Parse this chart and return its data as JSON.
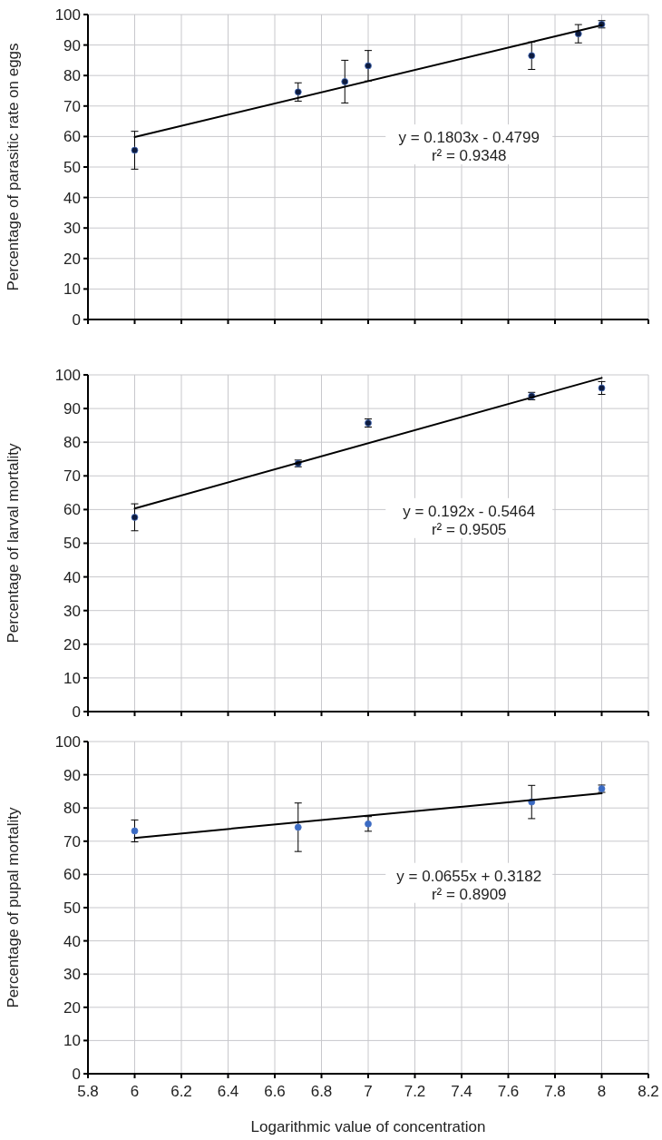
{
  "chart_data": [
    {
      "type": "scatter",
      "ylabel": "Percentage of parasitic rate on eggs",
      "xlim": [
        5.8,
        8.2
      ],
      "xticks": [
        5.8,
        6,
        6.2,
        6.4,
        6.6,
        6.8,
        7,
        7.2,
        7.4,
        7.6,
        7.8,
        8,
        8.2
      ],
      "ylim": [
        0,
        100
      ],
      "yticks": [
        0,
        10,
        20,
        30,
        40,
        50,
        60,
        70,
        80,
        90,
        100
      ],
      "grid": true,
      "tick_labels": "y",
      "annotations": [
        "y = 0.1803x - 0.4799",
        "r² = 0.9348"
      ],
      "series": [
        {
          "marker": "circle",
          "color": "#0d1b3e",
          "x": [
            6,
            6.7,
            6.9,
            7.0,
            7.7,
            7.9,
            8.0
          ],
          "values": [
            55.5,
            74.6,
            78,
            83.2,
            86.5,
            93.7,
            96.8
          ],
          "errors": [
            6.2,
            3,
            7,
            5,
            4.5,
            3,
            1.2
          ]
        },
        {
          "type": "line",
          "color": "#000000",
          "x": [
            6,
            8
          ],
          "values": [
            59.8,
            96.5
          ]
        }
      ]
    },
    {
      "type": "scatter",
      "ylabel": "Percentage of larval mortality",
      "xlim": [
        5.8,
        8.2
      ],
      "xticks": [
        5.8,
        6,
        6.2,
        6.4,
        6.6,
        6.8,
        7,
        7.2,
        7.4,
        7.6,
        7.8,
        8,
        8.2
      ],
      "ylim": [
        0,
        100
      ],
      "yticks": [
        0,
        10,
        20,
        30,
        40,
        50,
        60,
        70,
        80,
        90,
        100
      ],
      "grid": true,
      "tick_labels": "y",
      "annotations": [
        "y = 0.192x - 0.5464",
        "r² = 0.9505"
      ],
      "series": [
        {
          "marker": "circle",
          "color": "#0d1b3e",
          "x": [
            6,
            6.7,
            7.0,
            7.7,
            8.0
          ],
          "values": [
            57.7,
            73.7,
            85.7,
            93.7,
            96.1
          ],
          "errors": [
            4,
            1,
            1.2,
            1.1,
            1.9
          ]
        },
        {
          "type": "line",
          "color": "#000000",
          "x": [
            6,
            8
          ],
          "values": [
            60.3,
            99.1
          ]
        }
      ]
    },
    {
      "type": "scatter",
      "ylabel": "Percentage of pupal mortality",
      "xlabel": "Logarithmic value of concentration",
      "xlim": [
        5.8,
        8.2
      ],
      "xticks": [
        5.8,
        6,
        6.2,
        6.4,
        6.6,
        6.8,
        7,
        7.2,
        7.4,
        7.6,
        7.8,
        8,
        8.2
      ],
      "ylim": [
        0,
        100
      ],
      "yticks": [
        0,
        10,
        20,
        30,
        40,
        50,
        60,
        70,
        80,
        90,
        100
      ],
      "grid": true,
      "annotations": [
        "y = 0.0655x + 0.3182",
        "r² = 0.8909"
      ],
      "series": [
        {
          "marker": "circle",
          "color": "#3a6bc4",
          "x": [
            6,
            6.7,
            7.0,
            7.7,
            8.0
          ],
          "values": [
            73.1,
            74.2,
            75.2,
            81.8,
            85.8
          ],
          "errors": [
            3.3,
            7.3,
            2.2,
            5,
            1.1
          ]
        },
        {
          "type": "line",
          "color": "#000000",
          "x": [
            6,
            8
          ],
          "values": [
            71,
            84.4
          ]
        }
      ]
    }
  ]
}
